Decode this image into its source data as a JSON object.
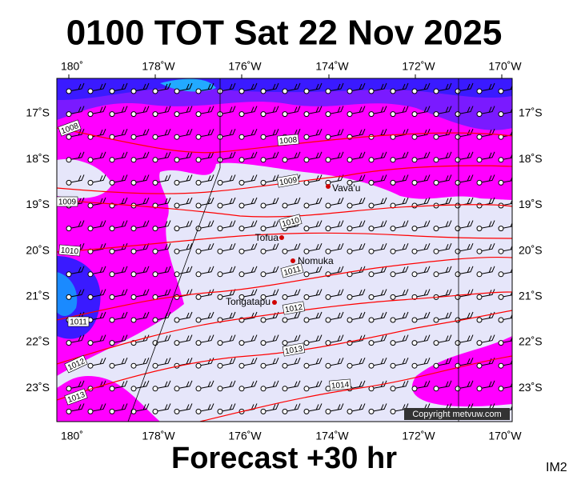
{
  "header": {
    "title": "0100 TOT Sat 22 Nov 2025"
  },
  "map": {
    "lon_labels_top": [
      "180˚",
      "178˚W",
      "176˚W",
      "174˚W",
      "172˚W",
      "170˚W"
    ],
    "lon_labels_bottom": [
      "180˚",
      "178˚W",
      "176˚W",
      "174˚W",
      "172˚W",
      "170˚W"
    ],
    "lat_labels_left": [
      "17˚S",
      "18˚S",
      "19˚S",
      "20˚S",
      "21˚S",
      "22˚S",
      "23˚S"
    ],
    "lat_labels_right": [
      "17˚S",
      "18˚S",
      "19˚S",
      "20˚S",
      "21˚S",
      "22˚S",
      "23˚S"
    ],
    "places": [
      "Vava'u",
      "Tofua",
      "Nomuka",
      "Tongatapu"
    ],
    "isobar_labels": [
      "1008",
      "1008",
      "1009",
      "1009",
      "1010",
      "1010",
      "1011",
      "1011",
      "1012",
      "1012",
      "1013",
      "1013",
      "1014"
    ],
    "copyright": "Copyright metvuw.com"
  },
  "footer": {
    "forecast": "Forecast +30 hr",
    "id": "IM2"
  }
}
